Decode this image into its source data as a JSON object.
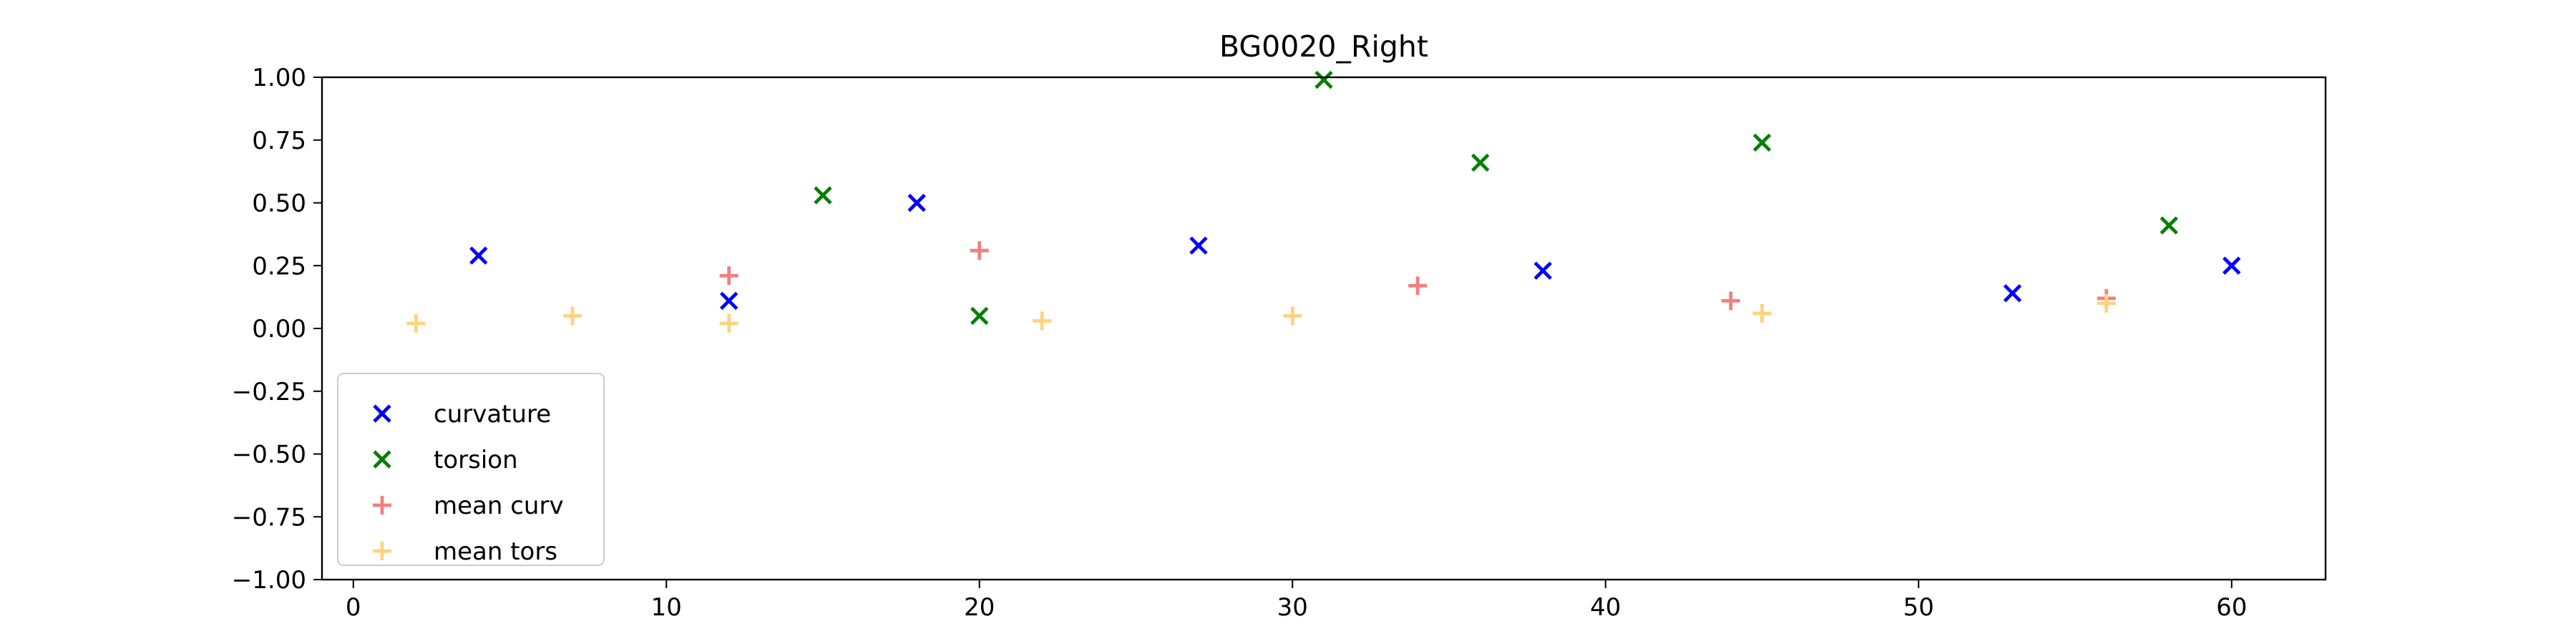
{
  "chart_data": {
    "type": "scatter",
    "title": "BG0020_Right",
    "xlabel": "",
    "ylabel": "",
    "xlim": [
      -1,
      63
    ],
    "ylim": [
      -1.0,
      1.0
    ],
    "xticks": [
      0,
      10,
      20,
      30,
      40,
      50,
      60
    ],
    "xtick_labels": [
      "0",
      "10",
      "20",
      "30",
      "40",
      "50",
      "60"
    ],
    "yticks": [
      1.0,
      0.75,
      0.5,
      0.25,
      0.0,
      -0.25,
      -0.5,
      -0.75,
      -1.0
    ],
    "ytick_labels": [
      "1.00",
      "0.75",
      "0.50",
      "0.25",
      "0.00",
      "−0.25",
      "−0.50",
      "−0.75",
      "−1.00"
    ],
    "grid": false,
    "legend_position": "lower-left",
    "series": [
      {
        "name": "curvature",
        "marker": "x",
        "color": "#0000ff",
        "points": [
          [
            4,
            0.29
          ],
          [
            12,
            0.11
          ],
          [
            18,
            0.5
          ],
          [
            27,
            0.33
          ],
          [
            38,
            0.23
          ],
          [
            53,
            0.14
          ],
          [
            60,
            0.25
          ]
        ]
      },
      {
        "name": "torsion",
        "marker": "x",
        "color": "#008000",
        "points": [
          [
            15,
            0.53
          ],
          [
            20,
            0.05
          ],
          [
            31,
            0.99
          ],
          [
            36,
            0.66
          ],
          [
            45,
            0.74
          ],
          [
            58,
            0.41
          ]
        ]
      },
      {
        "name": "mean curv",
        "marker": "+",
        "color": "#f08080",
        "points": [
          [
            12,
            0.21
          ],
          [
            20,
            0.31
          ],
          [
            34,
            0.17
          ],
          [
            44,
            0.11
          ],
          [
            56,
            0.12
          ]
        ]
      },
      {
        "name": "mean tors",
        "marker": "+",
        "color": "#ffd27f",
        "points": [
          [
            2,
            0.02
          ],
          [
            7,
            0.05
          ],
          [
            12,
            0.02
          ],
          [
            22,
            0.03
          ],
          [
            30,
            0.05
          ],
          [
            45,
            0.06
          ],
          [
            56,
            0.1
          ]
        ]
      }
    ]
  }
}
